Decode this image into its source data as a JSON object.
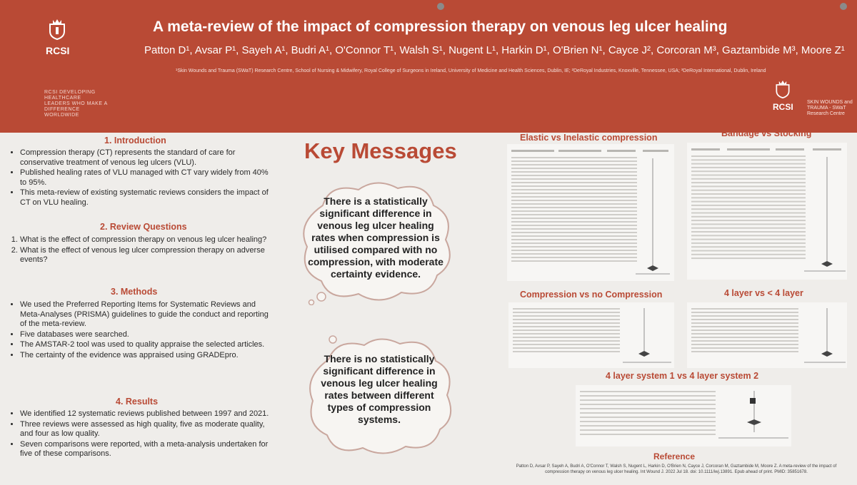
{
  "header": {
    "title": "A meta-review of the impact of compression therapy on venous leg ulcer healing",
    "authors": "Patton D¹, Avsar P¹, Sayeh A¹, Budri A¹, O'Connor T¹, Walsh S¹, Nugent L¹, Harkin D¹, O'Brien N¹, Cayce J², Corcoran M³, Gaztambide M³, Moore Z¹",
    "affiliations": "¹Skin Wounds and Trauma (SWaT) Research Centre, School of Nursing & Midwifery, Royal College of Surgeons in Ireland, University of Medicine and Health Sciences, Dublin, IE; ²DeRoyal Industries, Knoxville, Tennessee, USA; ³DeRoyal International, Dublin, Ireland",
    "logo_text": "RCSI",
    "motto": "RCSI DEVELOPING HEALTHCARE LEADERS WHO MAKE A DIFFERENCE WORLDWIDE",
    "right_logo_text": "RCSI",
    "centre_name": "SKIN WOUNDS and TRAUMA - SWaT Research Centre",
    "color": "#b94a35"
  },
  "sections": {
    "intro": {
      "heading": "1. Introduction",
      "bullets": [
        "Compression therapy (CT) represents the standard of care for conservative treatment of venous leg ulcers (VLU).",
        "Published healing rates of VLU managed with CT vary widely from 40% to 95%.",
        "This meta-review of existing systematic reviews considers the impact of CT on VLU healing."
      ]
    },
    "questions": {
      "heading": "2. Review Questions",
      "items": [
        "What is the effect of compression therapy on venous leg ulcer healing?",
        "What is the effect of venous leg ulcer compression therapy on adverse events?"
      ]
    },
    "methods": {
      "heading": "3. Methods",
      "bullets": [
        "We used the Preferred Reporting Items for Systematic Reviews and Meta-Analyses (PRISMA) guidelines to guide the conduct and reporting of the meta-review.",
        "Five databases were searched.",
        "The AMSTAR-2 tool was used to quality appraise the selected articles.",
        "The certainty of the evidence was appraised using GRADEpro."
      ]
    },
    "results": {
      "heading": "4. Results",
      "bullets": [
        "We identified 12 systematic reviews published between 1997 and 2021.",
        "Three reviews were assessed as high quality, five as moderate quality, and four as low quality.",
        "Seven comparisons were reported, with a meta-analysis undertaken for five of these comparisons."
      ]
    }
  },
  "key_messages": {
    "heading": "Key Messages",
    "message1": "There is a statistically significant difference in venous leg ulcer healing rates when compression is utilised compared with no compression, with moderate certainty evidence.",
    "message2": "There is no statistically significant difference in venous leg ulcer healing rates between different types of compression systems."
  },
  "plots": {
    "elastic": "Elastic vs Inelastic compression",
    "bandage": "Bandage vs Stocking",
    "nocomp": "Compression vs no Compression",
    "layer": "4 layer vs < 4 layer",
    "system": "4 layer system 1 vs 4 layer system 2"
  },
  "reference": {
    "heading": "Reference",
    "text": "Patton D, Avsar P, Sayeh A, Budri A, O'Connor T, Walsh S, Nugent L, Harkin D, O'Brien N, Cayce J, Corcoran M, Gaztambide M, Moore Z. A meta-review of the impact of compression therapy on venous leg ulcer healing. Int Wound J. 2022 Jul 18. doi: 10.1111/iwj.13891. Epub ahead of print. PMID: 35851678."
  }
}
